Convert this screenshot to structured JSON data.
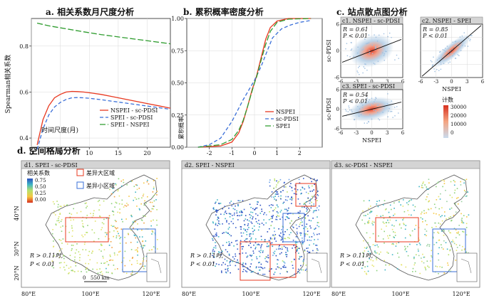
{
  "panels": {
    "a": {
      "title": "a. 相关系数月尺度分析"
    },
    "b": {
      "title": "b. 累积概率密度分析"
    },
    "c": {
      "title": "c. 站点散点图分析"
    },
    "d": {
      "title": "d. 空间格局分析"
    }
  },
  "colors": {
    "red": "#e8381f",
    "blue": "#3a6fd8",
    "green": "#2e9c2e",
    "line_black": "#111111"
  },
  "chart_data": [
    {
      "id": "a",
      "type": "line",
      "title": "a. 相关系数月尺度分析",
      "xlabel": "时间尺度(月)",
      "ylabel": "Spearman相关系数",
      "xlim": [
        0,
        24
      ],
      "ylim": [
        0.36,
        0.92
      ],
      "xticks": [
        "0",
        "5",
        "10",
        "15",
        "20"
      ],
      "yticks": [
        "0.4",
        "0.6",
        "0.8"
      ],
      "grid": true,
      "legend_position": "bottom-right",
      "series": [
        {
          "name": "NSPEI - sc-PDSI",
          "color": "#e8381f",
          "dash": "solid",
          "x": [
            1,
            2,
            3,
            4,
            5,
            6,
            7,
            8,
            9,
            10,
            12,
            14,
            16,
            18,
            20,
            22,
            24
          ],
          "y": [
            0.37,
            0.48,
            0.54,
            0.575,
            0.59,
            0.6,
            0.603,
            0.602,
            0.6,
            0.597,
            0.59,
            0.58,
            0.57,
            0.56,
            0.55,
            0.54,
            0.53
          ]
        },
        {
          "name": "SPEI - sc-PDSI",
          "color": "#3a6fd8",
          "dash": "dashed",
          "x": [
            1,
            2,
            3,
            4,
            5,
            6,
            7,
            8,
            9,
            10,
            12,
            14,
            16,
            18,
            20,
            22,
            24
          ],
          "y": [
            0.35,
            0.44,
            0.5,
            0.535,
            0.555,
            0.568,
            0.575,
            0.576,
            0.575,
            0.573,
            0.567,
            0.56,
            0.553,
            0.546,
            0.539,
            0.532,
            0.525
          ]
        },
        {
          "name": "SPEI - NSPEI",
          "color": "#2e9c2e",
          "dash": "longdash",
          "x": [
            1,
            3,
            6,
            9,
            12,
            15,
            18,
            21,
            24
          ],
          "y": [
            0.9,
            0.888,
            0.875,
            0.862,
            0.85,
            0.84,
            0.83,
            0.82,
            0.81
          ]
        }
      ]
    },
    {
      "id": "b",
      "type": "line",
      "title": "b. 累积概率密度分析",
      "ylabel": "累积概率",
      "xlim": [
        -3,
        3
      ],
      "ylim": [
        0,
        1
      ],
      "xticks": [
        "-2",
        "-1",
        "0",
        "1",
        "2"
      ],
      "yticks": [
        "0.00",
        "0.25",
        "0.50",
        "0.75",
        "1.00"
      ],
      "grid": true,
      "legend_position": "bottom-right",
      "series": [
        {
          "name": "NSPEI",
          "color": "#e8381f",
          "dash": "solid",
          "x": [
            -2.5,
            -1.5,
            -1.0,
            -0.7,
            -0.5,
            -0.3,
            -0.1,
            0.0,
            0.1,
            0.3,
            0.5,
            0.7,
            1.0,
            1.5,
            2.5
          ],
          "y": [
            0.0,
            0.01,
            0.04,
            0.11,
            0.2,
            0.32,
            0.45,
            0.5,
            0.56,
            0.7,
            0.84,
            0.93,
            0.98,
            1.0,
            1.0
          ]
        },
        {
          "name": "sc-PDSI",
          "color": "#3a6fd8",
          "dash": "dashed",
          "x": [
            -2.5,
            -2.0,
            -1.5,
            -1.0,
            -0.5,
            0.0,
            0.3,
            0.5,
            0.8,
            1.2,
            1.6,
            2.0,
            2.5
          ],
          "y": [
            0.0,
            0.02,
            0.07,
            0.2,
            0.37,
            0.52,
            0.63,
            0.72,
            0.85,
            0.92,
            0.95,
            0.97,
            0.985
          ]
        },
        {
          "name": "SPEI",
          "color": "#2e9c2e",
          "dash": "longdash",
          "x": [
            -2.5,
            -1.5,
            -1.0,
            -0.7,
            -0.5,
            -0.3,
            -0.1,
            0.0,
            0.1,
            0.3,
            0.5,
            0.7,
            1.0,
            1.5,
            2.5
          ],
          "y": [
            0.0,
            0.02,
            0.06,
            0.13,
            0.21,
            0.32,
            0.44,
            0.5,
            0.55,
            0.68,
            0.8,
            0.9,
            0.97,
            0.995,
            1.0
          ]
        }
      ]
    },
    {
      "id": "c",
      "type": "scatter",
      "title": "c. 站点散点图分析",
      "subplots": [
        {
          "label": "c1. NSPEI - sc-PDSI",
          "xlabel": "",
          "ylabel": "sc-PDSI",
          "R": "R = 0.61",
          "P": "P < 0.01"
        },
        {
          "label": "c2. NSPEI - SPEI",
          "xlabel": "NSPEI",
          "ylabel": "",
          "R": "R = 0.85",
          "P": "P < 0.01"
        },
        {
          "label": "c3. SPEI - sc-PDSI",
          "xlabel": "NSPEI",
          "ylabel": "sc-PDSI",
          "R": "R = 0.54",
          "P": "P < 0.01"
        }
      ],
      "xlim": [
        -6,
        6
      ],
      "ylim": [
        -6,
        6
      ],
      "ticks": [
        "-6",
        "-3",
        "0",
        "3",
        "6"
      ],
      "colorbar": {
        "title": "计数",
        "labels": [
          "30000",
          "20000",
          "10000",
          "0"
        ]
      }
    },
    {
      "id": "d",
      "type": "heatmap",
      "title": "d. 空间格局分析",
      "maps": [
        {
          "label": "d1. SPEI - sc-PDSI",
          "R_text": "R > 0.11时,",
          "P_text": "P < 0.01"
        },
        {
          "label": "d2. SPEI - NSPEI",
          "R_text": "R > 0.11时,",
          "P_text": "P < 0.01"
        },
        {
          "label": "d3. sc-PDSI - NSPEI",
          "R_text": "R > 0.11时,",
          "P_text": "P < 0.01"
        }
      ],
      "legend": {
        "title": "相关系数",
        "labels": [
          "0.75",
          "0.50",
          "0.25",
          "0.00"
        ]
      },
      "box_legend": {
        "red": "差异大区域",
        "blue": "差异小区域"
      },
      "scale_bar": "550 km",
      "scale_zero": "0",
      "lon_ticks": [
        "80°E",
        "100°E",
        "120°E"
      ],
      "lat_ticks": [
        "40°N",
        "30°N",
        "20°N"
      ]
    }
  ]
}
